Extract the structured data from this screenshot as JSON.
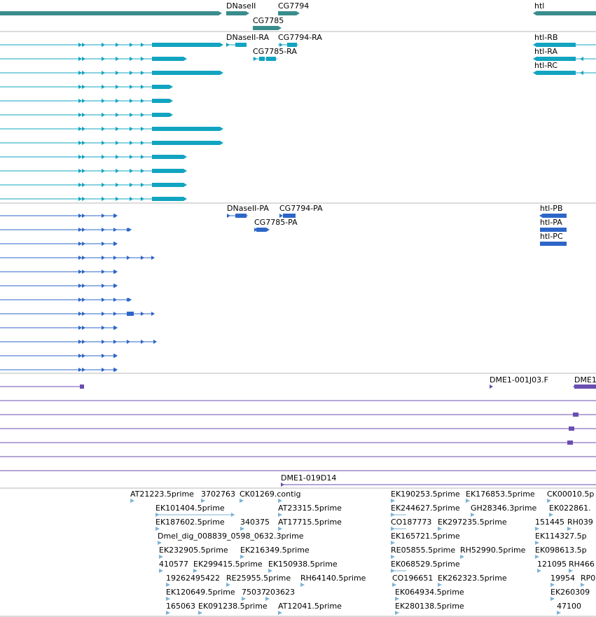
{
  "colors": {
    "gene": "#3a8c8c",
    "transcript": "#12a4c0",
    "protein": "#2d66c8",
    "clone": "#6a4eb0",
    "est": "#7db3d6",
    "divider": "#b8b8b8"
  },
  "genes": {
    "labels": [
      "DNaseII",
      "CG7794",
      "CG7785",
      "htl"
    ]
  },
  "transcripts": {
    "labels": [
      "DNaseII-RA",
      "CG7794-RA",
      "CG7785-RA",
      "htl-RB",
      "htl-RA",
      "htl-RC"
    ]
  },
  "proteins": {
    "labels": [
      "DNaseII-PA",
      "CG7794-PA",
      "CG7785-PA",
      "htl-PB",
      "htl-PA",
      "htl-PC"
    ]
  },
  "clones": {
    "labels": [
      "DME1-001J03.F",
      "DME1",
      "DME1-019D14"
    ]
  },
  "ests": {
    "labels": [
      "AT21223.5prime",
      "3702763",
      "CK01269.contig",
      "EK101404.5prime",
      "AT23315.5prime",
      "EK187602.5prime",
      "340375",
      "AT17715.5prime",
      "Dmel_dig_008839_0598_0632.3prime",
      "EK232905.5prime",
      "EK216349.5prime",
      "410577",
      "EK299415.5prime",
      "EK150938.5prime",
      "19262495422",
      "RE25955.5prime",
      "RH64140.5prime",
      "EK120649.5prime",
      "75037",
      "203623",
      "165063",
      "EK091238.5prime",
      "AT12041.5prime",
      "EK190253.5prime",
      "EK176853.5prime",
      "CK00010.5p",
      "EK244627.5prime",
      "GH28346.3prime",
      "EK022861.",
      "CO187773",
      "EK297235.5prime",
      "151445",
      "RH039",
      "EK165721.5prime",
      "EK114327.5p",
      "RE05855.5prime",
      "RH52990.5prime",
      "EK098613.5p",
      "EK068529.5prime",
      "121095",
      "RH466",
      "CO196651",
      "EK262323.5prime",
      "19954",
      "RP0",
      "EK064934.5prime",
      "EK260309",
      "EK280138.5prime",
      "47100"
    ]
  }
}
